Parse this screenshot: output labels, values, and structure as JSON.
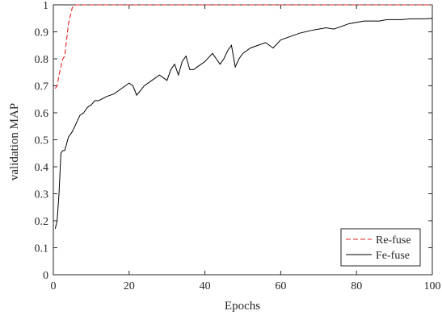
{
  "chart_data": {
    "type": "line",
    "xlabel": "Epochs",
    "ylabel": "validation MAP",
    "xlim": [
      0,
      100
    ],
    "ylim": [
      0,
      1
    ],
    "xticks": [
      "0",
      "20",
      "40",
      "60",
      "80",
      "100"
    ],
    "yticks": [
      "0",
      "0.1",
      "0.2",
      "0.3",
      "0.4",
      "0.5",
      "0.6",
      "0.7",
      "0.8",
      "0.9",
      "1"
    ],
    "grid": false,
    "legend_position": "bottom-right",
    "series": [
      {
        "name": "Re-fuse",
        "color": "#e02020",
        "dash": "dashed",
        "x": [
          0.5,
          1,
          1.5,
          2,
          2.5,
          3,
          3.5,
          4,
          4.5,
          5,
          5.5,
          6,
          7,
          8,
          10,
          20,
          40,
          60,
          80,
          100
        ],
        "y": [
          0.69,
          0.7,
          0.74,
          0.77,
          0.8,
          0.81,
          0.87,
          0.93,
          0.96,
          0.99,
          0.997,
          1.0,
          1.0,
          1.0,
          1.0,
          1.0,
          1.0,
          1.0,
          1.0,
          1.0
        ]
      },
      {
        "name": "Fe-fuse",
        "color": "#000000",
        "dash": "solid",
        "x": [
          0.5,
          1,
          1.5,
          2,
          2.5,
          3,
          4,
          5,
          6,
          7,
          8,
          9,
          10,
          11,
          12,
          14,
          16,
          18,
          19,
          20,
          21,
          22,
          24,
          26,
          28,
          30,
          31,
          32,
          33,
          34,
          35,
          36,
          37,
          38,
          40,
          42,
          43,
          44,
          45,
          46,
          47,
          48,
          49,
          50,
          52,
          54,
          56,
          57,
          58,
          60,
          62,
          65,
          68,
          70,
          72,
          74,
          76,
          78,
          80,
          82,
          84,
          86,
          88,
          90,
          92,
          94,
          96,
          98,
          100
        ],
        "y": [
          0.17,
          0.2,
          0.3,
          0.45,
          0.46,
          0.46,
          0.51,
          0.53,
          0.56,
          0.59,
          0.6,
          0.62,
          0.63,
          0.645,
          0.645,
          0.66,
          0.67,
          0.69,
          0.7,
          0.71,
          0.7,
          0.665,
          0.7,
          0.72,
          0.74,
          0.72,
          0.76,
          0.78,
          0.74,
          0.79,
          0.81,
          0.76,
          0.76,
          0.77,
          0.79,
          0.82,
          0.8,
          0.78,
          0.8,
          0.83,
          0.85,
          0.77,
          0.8,
          0.82,
          0.84,
          0.85,
          0.86,
          0.85,
          0.84,
          0.87,
          0.88,
          0.895,
          0.905,
          0.91,
          0.915,
          0.91,
          0.92,
          0.93,
          0.935,
          0.94,
          0.94,
          0.94,
          0.945,
          0.945,
          0.945,
          0.948,
          0.948,
          0.948,
          0.95
        ]
      }
    ]
  }
}
